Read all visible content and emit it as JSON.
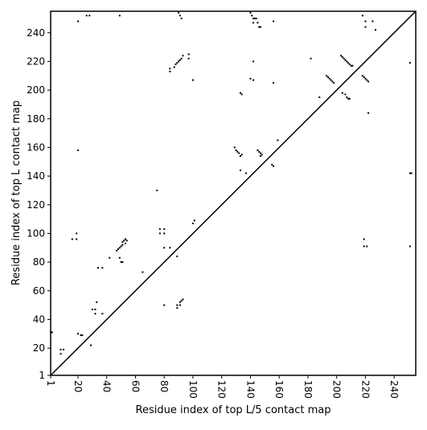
{
  "chart_data": {
    "type": "scatter",
    "xlabel": "Residue index of top L/5 contact map",
    "ylabel": "Residue index of top L contact map",
    "xlim": [
      1,
      255
    ],
    "ylim": [
      1,
      255
    ],
    "xticks": [
      1,
      20,
      40,
      60,
      80,
      100,
      120,
      140,
      160,
      180,
      200,
      220,
      240
    ],
    "yticks": [
      1,
      20,
      40,
      60,
      80,
      100,
      120,
      140,
      160,
      180,
      200,
      220,
      240
    ],
    "diagonal": true,
    "color": "#000000",
    "x": [
      1,
      2,
      8,
      8,
      10,
      20,
      16,
      19,
      19,
      20,
      22,
      23,
      29,
      30,
      32,
      32,
      33,
      34,
      37,
      37,
      42,
      47,
      48,
      49,
      50,
      51,
      51,
      52,
      53,
      54,
      53,
      50,
      49,
      51,
      65,
      75,
      77,
      77,
      80,
      80,
      80,
      84,
      80,
      84,
      84,
      87,
      88,
      89,
      90,
      91,
      92,
      93,
      97,
      97,
      89,
      89,
      91,
      91,
      92,
      93,
      89,
      100,
      101,
      100,
      129,
      130,
      131,
      132,
      133,
      134,
      133,
      133,
      134,
      137,
      140,
      142,
      142,
      145,
      146,
      147,
      148,
      147,
      155,
      156,
      156,
      159,
      20,
      26,
      28,
      49,
      90,
      91,
      92,
      140,
      141,
      142,
      143,
      144,
      142,
      145,
      146,
      147,
      156,
      182,
      188,
      193,
      194,
      195,
      196,
      197,
      198,
      203,
      204,
      205,
      206,
      207,
      208,
      209,
      210,
      211,
      204,
      206,
      207,
      208,
      209,
      218,
      219,
      220,
      221,
      222,
      218,
      220,
      220,
      222,
      225,
      227,
      219,
      219,
      221,
      251,
      251,
      252,
      251
    ],
    "y": [
      31,
      31,
      19,
      16,
      19,
      158,
      96,
      96,
      100,
      30,
      29,
      29,
      22,
      47,
      47,
      44,
      52,
      76,
      76,
      44,
      83,
      88,
      89,
      90,
      91,
      92,
      94,
      95,
      96,
      95,
      93,
      80,
      83,
      80,
      73,
      130,
      103,
      100,
      103,
      100,
      90,
      90,
      50,
      213,
      215,
      216,
      218,
      219,
      220,
      221,
      222,
      224,
      222,
      225,
      48,
      50,
      50,
      52,
      53,
      54,
      84,
      107,
      109,
      207,
      160,
      158,
      157,
      156,
      154,
      155,
      144,
      198,
      197,
      142,
      208,
      207,
      220,
      158,
      157,
      156,
      155,
      154,
      148,
      147,
      205,
      165,
      248,
      252,
      252,
      252,
      254,
      252,
      250,
      254,
      252,
      250,
      250,
      250,
      247,
      247,
      244,
      244,
      248,
      222,
      195,
      210,
      209,
      208,
      207,
      206,
      205,
      224,
      223,
      222,
      221,
      220,
      219,
      218,
      217,
      217,
      198,
      197,
      195,
      194,
      194,
      210,
      209,
      208,
      207,
      206,
      252,
      248,
      244,
      184,
      248,
      242,
      96,
      91,
      91,
      219,
      142,
      142,
      91
    ]
  }
}
